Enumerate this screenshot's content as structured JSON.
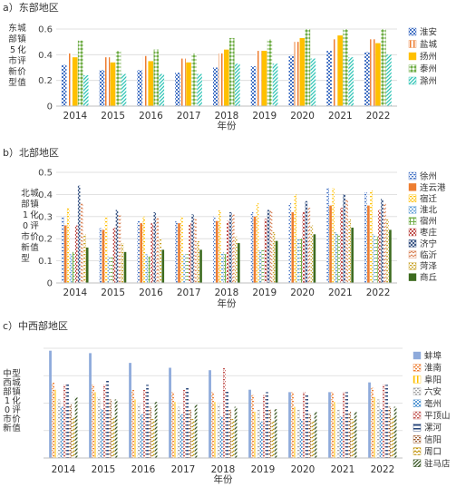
{
  "chart_data": [
    {
      "type": "bar",
      "panel_title": "a）东部地区",
      "ylabel": "东部5市新型城镇化评价值",
      "xlabel": "年份",
      "categories": [
        "2014",
        "2015",
        "2016",
        "2017",
        "2018",
        "2019",
        "2020",
        "2021",
        "2022"
      ],
      "ylim": [
        0,
        0.6
      ],
      "yticks": [
        "0",
        "0.2",
        "0.4",
        "0.6"
      ],
      "grid": true,
      "legend_position": "right",
      "series": [
        {
          "name": "淮安",
          "color": "#4472c4",
          "pattern": "dots",
          "values": [
            0.32,
            0.28,
            0.28,
            0.26,
            0.3,
            0.31,
            0.39,
            0.43,
            0.42
          ]
        },
        {
          "name": "盐城",
          "color": "#ed7d31",
          "pattern": "vlines",
          "values": [
            0.41,
            0.38,
            0.39,
            0.37,
            0.41,
            0.43,
            0.5,
            0.52,
            0.52
          ]
        },
        {
          "name": "扬州",
          "color": "#ffc000",
          "pattern": "solid",
          "values": [
            0.38,
            0.34,
            0.35,
            0.34,
            0.44,
            0.43,
            0.53,
            0.55,
            0.49
          ]
        },
        {
          "name": "泰州",
          "color": "#70ad47",
          "pattern": "diamonds",
          "values": [
            0.51,
            0.43,
            0.44,
            0.41,
            0.53,
            0.52,
            0.6,
            0.6,
            0.6
          ]
        },
        {
          "name": "滁州",
          "color": "#2ec4b6",
          "pattern": "diag",
          "values": [
            0.24,
            0.25,
            0.25,
            0.25,
            0.33,
            0.33,
            0.37,
            0.38,
            0.4
          ]
        }
      ]
    },
    {
      "type": "bar",
      "panel_title": "b）北部地区",
      "ylabel": "北部10市新型城镇化评价值",
      "xlabel": "年份",
      "categories": [
        "2014",
        "2015",
        "2016",
        "2017",
        "2018",
        "2019",
        "2020",
        "2021",
        "2022"
      ],
      "ylim": [
        0,
        0.5
      ],
      "yticks": [
        "0",
        "0.1",
        "0.2",
        "0.3",
        "0.4",
        "0.5"
      ],
      "grid": true,
      "legend_position": "right",
      "series": [
        {
          "name": "徐州",
          "color": "#4472c4",
          "pattern": "dash",
          "values": [
            0.3,
            0.25,
            0.28,
            0.28,
            0.3,
            0.32,
            0.36,
            0.43,
            0.41
          ]
        },
        {
          "name": "连云港",
          "color": "#ed7d31",
          "pattern": "solid",
          "values": [
            0.26,
            0.24,
            0.27,
            0.27,
            0.28,
            0.3,
            0.32,
            0.35,
            0.35
          ]
        },
        {
          "name": "宿迁",
          "color": "#ffc000",
          "pattern": "dash",
          "values": [
            0.34,
            0.3,
            0.3,
            0.3,
            0.33,
            0.36,
            0.4,
            0.43,
            0.42
          ]
        },
        {
          "name": "淮北",
          "color": "#5b9bd5",
          "pattern": "dash",
          "values": [
            0.13,
            0.12,
            0.13,
            0.13,
            0.14,
            0.15,
            0.2,
            0.23,
            0.22
          ]
        },
        {
          "name": "宿州",
          "color": "#70ad47",
          "pattern": "grid",
          "values": [
            0.14,
            0.12,
            0.12,
            0.13,
            0.13,
            0.15,
            0.2,
            0.22,
            0.21
          ]
        },
        {
          "name": "枣庄",
          "color": "#c0504d",
          "pattern": "dots",
          "values": [
            0.26,
            0.25,
            0.27,
            0.27,
            0.28,
            0.29,
            0.32,
            0.34,
            0.33
          ]
        },
        {
          "name": "济宁",
          "color": "#264478",
          "pattern": "cross",
          "values": [
            0.44,
            0.33,
            0.32,
            0.31,
            0.32,
            0.33,
            0.37,
            0.4,
            0.38
          ]
        },
        {
          "name": "临沂",
          "color": "#d97f53",
          "pattern": "zigzag",
          "values": [
            0.36,
            0.31,
            0.3,
            0.29,
            0.31,
            0.33,
            0.34,
            0.38,
            0.36
          ]
        },
        {
          "name": "菏泽",
          "color": "#c9a227",
          "pattern": "dash",
          "values": [
            0.22,
            0.18,
            0.2,
            0.19,
            0.21,
            0.23,
            0.26,
            0.29,
            0.29
          ]
        },
        {
          "name": "商丘",
          "color": "#3d6b1f",
          "pattern": "solid",
          "values": [
            0.16,
            0.14,
            0.15,
            0.15,
            0.18,
            0.19,
            0.22,
            0.25,
            0.24
          ]
        }
      ]
    },
    {
      "type": "bar",
      "panel_title": "c）中西部地区",
      "ylabel": "中西部10市新型城镇化评价值",
      "xlabel": "年份",
      "categories": [
        "2014",
        "2015",
        "2016",
        "2017",
        "2018",
        "2019",
        "2020",
        "2021",
        "2022"
      ],
      "ylim": [
        0,
        0.45
      ],
      "yticks": [],
      "grid": true,
      "legend_position": "right",
      "series": [
        {
          "name": "蚌埠",
          "color": "#8eaadb",
          "pattern": "solid",
          "values": [
            0.44,
            0.43,
            0.39,
            0.37,
            0.36,
            0.28,
            0.27,
            0.27,
            0.31
          ]
        },
        {
          "name": "淮南",
          "color": "#ed7d31",
          "pattern": "dash",
          "values": [
            0.31,
            0.3,
            0.28,
            0.27,
            0.27,
            0.26,
            0.27,
            0.27,
            0.29
          ]
        },
        {
          "name": "阜阳",
          "color": "#ffc000",
          "pattern": "vlines",
          "values": [
            0.28,
            0.27,
            0.24,
            0.23,
            0.23,
            0.19,
            0.21,
            0.23,
            0.25
          ]
        },
        {
          "name": "六安",
          "color": "#a5a5a5",
          "pattern": "dash",
          "values": [
            0.24,
            0.25,
            0.22,
            0.21,
            0.22,
            0.2,
            0.2,
            0.2,
            0.24
          ]
        },
        {
          "name": "亳州",
          "color": "#5b9bd5",
          "pattern": "dots",
          "values": [
            0.21,
            0.2,
            0.18,
            0.18,
            0.17,
            0.15,
            0.16,
            0.17,
            0.2
          ]
        },
        {
          "name": "平顶山",
          "color": "#c0504d",
          "pattern": "dash",
          "values": [
            0.3,
            0.3,
            0.28,
            0.28,
            0.37,
            0.26,
            0.27,
            0.27,
            0.3
          ]
        },
        {
          "name": "漯河",
          "color": "#264478",
          "pattern": "hlines",
          "values": [
            0.31,
            0.32,
            0.3,
            0.29,
            0.28,
            0.27,
            0.26,
            0.27,
            0.3
          ]
        },
        {
          "name": "信阳",
          "color": "#9c5a2e",
          "pattern": "dash",
          "values": [
            0.22,
            0.24,
            0.21,
            0.2,
            0.2,
            0.2,
            0.18,
            0.19,
            0.21
          ]
        },
        {
          "name": "周口",
          "color": "#bf9000",
          "pattern": "zigzag",
          "values": [
            0.17,
            0.17,
            0.16,
            0.16,
            0.16,
            0.15,
            0.15,
            0.16,
            0.17
          ]
        },
        {
          "name": "驻马店",
          "color": "#375623",
          "pattern": "diag",
          "values": [
            0.25,
            0.24,
            0.23,
            0.22,
            0.21,
            0.2,
            0.19,
            0.19,
            0.21
          ]
        }
      ]
    }
  ]
}
